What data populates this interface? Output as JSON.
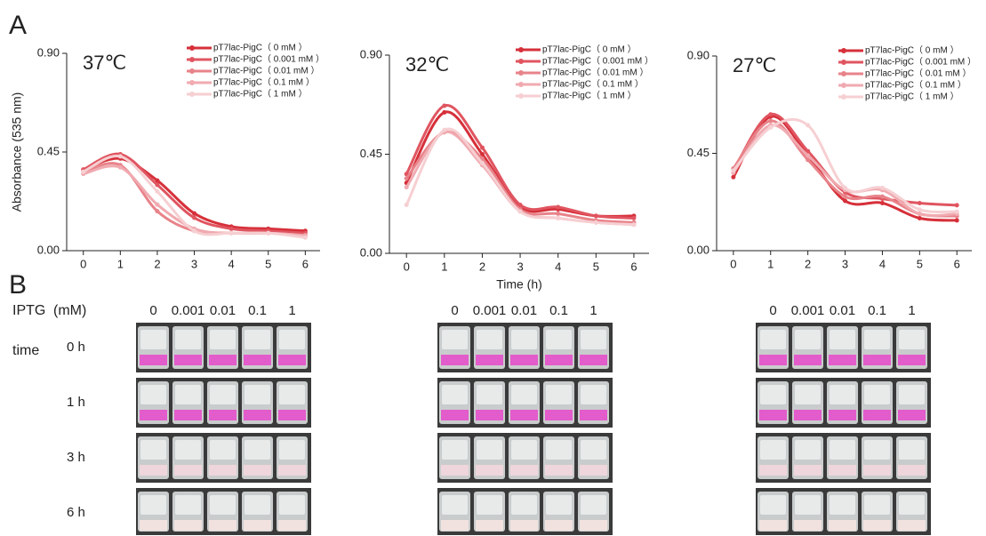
{
  "panel_labels": [
    "A",
    "B"
  ],
  "photo_grid": {
    "iptg_label": "IPTG",
    "unit_label": "(mM)",
    "time_label": "time",
    "concentrations": [
      "0",
      "0.001",
      "0.01",
      "0.1",
      "1"
    ],
    "times": [
      "0 h",
      "1 h",
      "3 h",
      "6 h"
    ]
  },
  "chart_data": [
    {
      "type": "line",
      "title": "37℃",
      "ylabel": "Absorbance (535 nm)",
      "x": [
        0,
        1,
        2,
        3,
        4,
        5,
        6
      ],
      "xlim": [
        -0.45,
        6.4
      ],
      "xticks": [
        0,
        1,
        2,
        3,
        4,
        5,
        6
      ],
      "ylim": [
        0,
        0.9
      ],
      "yticks": [
        {
          "value": 0,
          "label": "0.00"
        },
        {
          "value": 0.45,
          "label": "0.45"
        },
        {
          "value": 0.9,
          "label": "0.90"
        }
      ],
      "legend": "upper right",
      "series": [
        {
          "name": "pT7lac-PigC（ 0 mM ）",
          "color": "#d6303a",
          "values": [
            0.37,
            0.42,
            0.32,
            0.17,
            0.11,
            0.1,
            0.09
          ]
        },
        {
          "name": "pT7lac-PigC（ 0.001 mM ）",
          "color": "#e05560",
          "values": [
            0.37,
            0.44,
            0.3,
            0.15,
            0.1,
            0.09,
            0.08
          ]
        },
        {
          "name": "pT7lac-PigC（ 0.01 mM ）",
          "color": "#e8838a",
          "values": [
            0.36,
            0.39,
            0.18,
            0.09,
            0.08,
            0.08,
            0.07
          ]
        },
        {
          "name": "pT7lac-PigC（ 0.1 mM ）",
          "color": "#f0aab0",
          "values": [
            0.35,
            0.38,
            0.21,
            0.1,
            0.08,
            0.08,
            0.07
          ]
        },
        {
          "name": "pT7lac-PigC（ 1 mM ）",
          "color": "#f6cfd2",
          "values": [
            0.36,
            0.43,
            0.27,
            0.09,
            0.08,
            0.08,
            0.06
          ]
        }
      ]
    },
    {
      "type": "line",
      "title": "32℃",
      "xlabel": "Time (h)",
      "x": [
        0,
        1,
        2,
        3,
        4,
        5,
        6
      ],
      "xlim": [
        -0.45,
        6.4
      ],
      "xticks": [
        0,
        1,
        2,
        3,
        4,
        5,
        6
      ],
      "ylim": [
        0,
        0.9
      ],
      "yticks": [
        {
          "value": 0,
          "label": "0.00"
        },
        {
          "value": 0.45,
          "label": "0.45"
        },
        {
          "value": 0.9,
          "label": "0.90"
        }
      ],
      "legend": "upper right",
      "series": [
        {
          "name": "pT7lac-PigC（ 0 mM ）",
          "color": "#d6303a",
          "values": [
            0.32,
            0.64,
            0.45,
            0.21,
            0.2,
            0.17,
            0.17
          ]
        },
        {
          "name": "pT7lac-PigC（ 0.001 mM ）",
          "color": "#e05560",
          "values": [
            0.36,
            0.67,
            0.48,
            0.22,
            0.21,
            0.17,
            0.16
          ]
        },
        {
          "name": "pT7lac-PigC（ 0.01 mM ）",
          "color": "#e8838a",
          "values": [
            0.34,
            0.55,
            0.43,
            0.2,
            0.18,
            0.15,
            0.14
          ]
        },
        {
          "name": "pT7lac-PigC（ 0.1 mM ）",
          "color": "#f0aab0",
          "values": [
            0.3,
            0.55,
            0.4,
            0.19,
            0.16,
            0.14,
            0.13
          ]
        },
        {
          "name": "pT7lac-PigC（ 1 mM ）",
          "color": "#f6cfd2",
          "values": [
            0.22,
            0.56,
            0.41,
            0.19,
            0.16,
            0.14,
            0.13
          ]
        }
      ]
    },
    {
      "type": "line",
      "title": "27℃",
      "x": [
        0,
        1,
        2,
        3,
        4,
        5,
        6
      ],
      "xlim": [
        -0.45,
        6.4
      ],
      "xticks": [
        0,
        1,
        2,
        3,
        4,
        5,
        6
      ],
      "ylim": [
        0,
        0.9
      ],
      "yticks": [
        {
          "value": 0,
          "label": "0.00"
        },
        {
          "value": 0.45,
          "label": "0.45"
        },
        {
          "value": 0.9,
          "label": "0.90"
        }
      ],
      "legend": "upper right",
      "series": [
        {
          "name": "pT7lac-PigC（ 0 mM ）",
          "color": "#d6303a",
          "values": [
            0.34,
            0.62,
            0.44,
            0.23,
            0.22,
            0.15,
            0.14
          ]
        },
        {
          "name": "pT7lac-PigC（ 0.001 mM ）",
          "color": "#e05560",
          "values": [
            0.37,
            0.63,
            0.46,
            0.27,
            0.24,
            0.22,
            0.21
          ]
        },
        {
          "name": "pT7lac-PigC（ 0.01 mM ）",
          "color": "#e8838a",
          "values": [
            0.38,
            0.6,
            0.42,
            0.25,
            0.25,
            0.17,
            0.16
          ]
        },
        {
          "name": "pT7lac-PigC（ 0.1 mM ）",
          "color": "#f0aab0",
          "values": [
            0.36,
            0.58,
            0.44,
            0.28,
            0.28,
            0.17,
            0.17
          ]
        },
        {
          "name": "pT7lac-PigC（ 1 mM ）",
          "color": "#f6cfd2",
          "values": [
            0.37,
            0.57,
            0.58,
            0.29,
            0.29,
            0.19,
            0.18
          ]
        }
      ]
    }
  ]
}
